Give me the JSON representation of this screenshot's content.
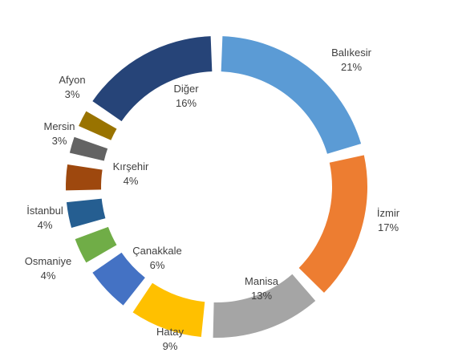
{
  "chart_data": {
    "type": "pie",
    "title": "",
    "categories": [
      "Balıkesir",
      "İzmir",
      "Manisa",
      "Hatay",
      "Çanakkale",
      "Osmaniye",
      "İstanbul",
      "Kırşehir",
      "Mersin",
      "Afyon",
      "Diğer"
    ],
    "values": [
      21,
      17,
      13,
      9,
      6,
      4,
      4,
      4,
      3,
      3,
      16
    ],
    "value_labels": [
      "21%",
      "17%",
      "13%",
      "9%",
      "6%",
      "4%",
      "4%",
      "4%",
      "3%",
      "3%",
      "16%"
    ],
    "colors": [
      "#5b9bd5",
      "#ed7d31",
      "#a5a5a5",
      "#ffc000",
      "#4472c4",
      "#70ad47",
      "#255e91",
      "#9e480e",
      "#636363",
      "#997300",
      "#264478"
    ],
    "legend": "none"
  }
}
